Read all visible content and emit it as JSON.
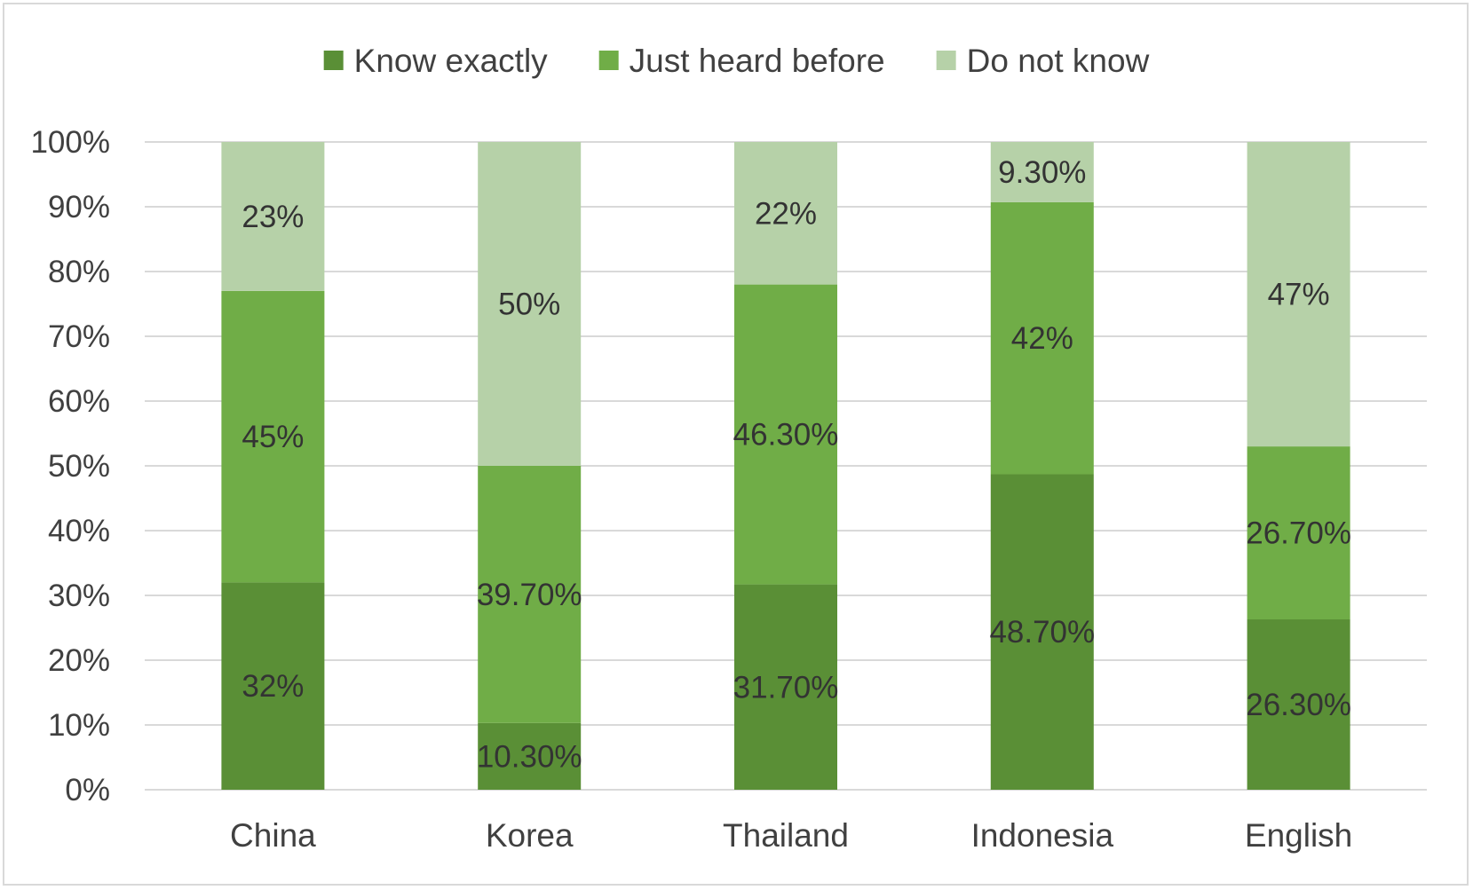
{
  "chart_data": {
    "type": "bar",
    "stacked": true,
    "title": "",
    "xlabel": "",
    "ylabel": "",
    "categories": [
      "China",
      "Korea",
      "Thailand",
      "Indonesia",
      "English"
    ],
    "series": [
      {
        "name": "Know exactly",
        "color": "#5a8f36",
        "values": [
          32,
          10.3,
          31.7,
          48.7,
          26.3
        ],
        "labels": [
          "32%",
          "10.30%",
          "31.70%",
          "48.70%",
          "26.30%"
        ]
      },
      {
        "name": "Just heard before",
        "color": "#70ad47",
        "values": [
          45,
          39.7,
          46.3,
          42,
          26.7
        ],
        "labels": [
          "45%",
          "39.70%",
          "46.30%",
          "42%",
          "26.70%"
        ]
      },
      {
        "name": "Do not know",
        "color": "#b6d1a8",
        "values": [
          23,
          50,
          22,
          9.3,
          47
        ],
        "labels": [
          "23%",
          "50%",
          "22%",
          "9.30%",
          "47%"
        ]
      }
    ],
    "ylim": [
      0,
      100
    ],
    "yticks": [
      "0%",
      "10%",
      "20%",
      "30%",
      "40%",
      "50%",
      "60%",
      "70%",
      "80%",
      "90%",
      "100%"
    ],
    "grid": true,
    "legend_position": "top"
  }
}
